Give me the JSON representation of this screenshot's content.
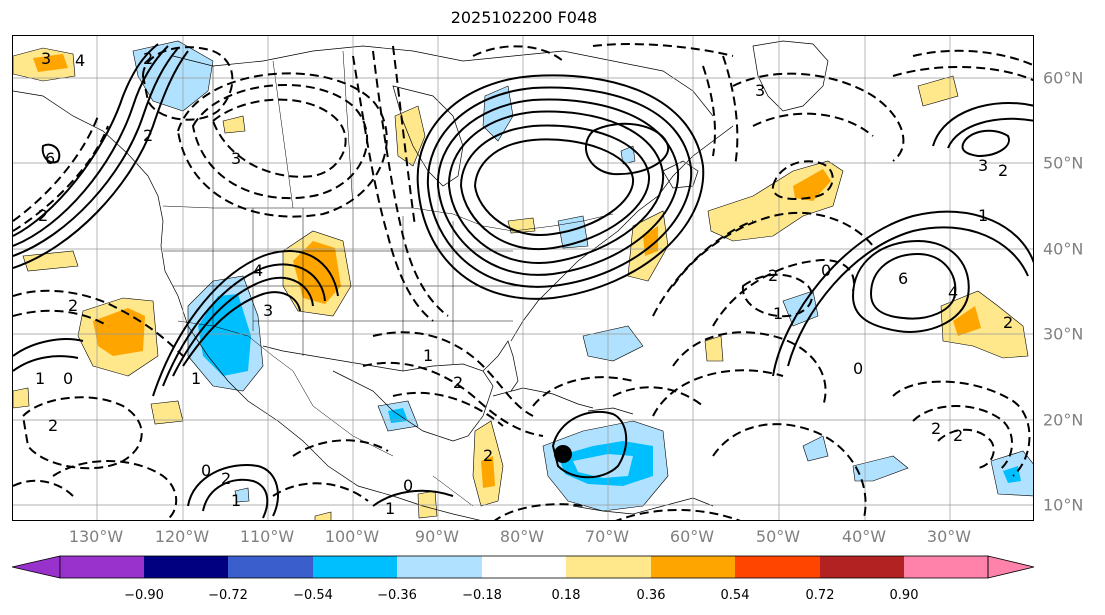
{
  "title": "2025102200 F048",
  "lon_labels": [
    "130°W",
    "120°W",
    "110°W",
    "100°W",
    "90°W",
    "80°W",
    "70°W",
    "60°W",
    "50°W",
    "40°W",
    "30°W"
  ],
  "lat_labels": [
    "60°N",
    "50°N",
    "40°N",
    "30°N",
    "20°N",
    "10°N"
  ],
  "colorbar": {
    "ticks": [
      "−0.90",
      "−0.72",
      "−0.54",
      "−0.36",
      "−0.18",
      "0.18",
      "0.36",
      "0.54",
      "0.72",
      "0.90"
    ],
    "colors": {
      "under": "#9932cc",
      "c1": "#000080",
      "c2": "#3a5fcd",
      "c3": "#00bfff",
      "c4": "#b0e2ff",
      "c5": "#ffffff",
      "c6": "#ffe88c",
      "c7": "#ffa500",
      "c8": "#ff4500",
      "c9": "#b22222",
      "over": "#ff82ab"
    }
  },
  "contour_labels": {
    "l1": "4",
    "l2": "3",
    "l3": "6",
    "l4": "2",
    "l5": "2",
    "l6": "2",
    "l7": "1",
    "l8": "0",
    "l9": "1",
    "l10": "2",
    "l11": "2",
    "l12": "3",
    "l13": "4",
    "l14": "3",
    "l15": "3",
    "l16": "2",
    "l17": "1",
    "l18": "2",
    "l19": "1",
    "l20": "0",
    "l21": "6",
    "l22": "4",
    "l23": "0",
    "l24": "2",
    "l25": "2",
    "l26": "0",
    "l27": "1",
    "l28": "2",
    "l29": "0",
    "l30": "2",
    "l31": "1",
    "l32": "1",
    "l33": "3",
    "l34": "2",
    "l35": "2"
  }
}
